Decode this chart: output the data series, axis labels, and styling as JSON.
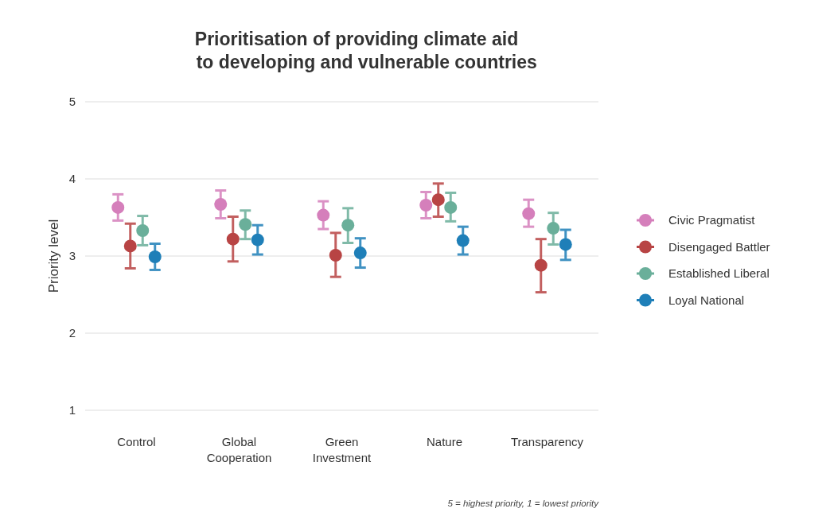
{
  "chart_data": {
    "type": "scatter",
    "title": "Prioritisation of providing climate aid\n    to developing and vulnerable countries",
    "ylabel": "Priority level",
    "annotations": [
      "5 = highest priority, 1 = lowest priority"
    ],
    "categories": [
      "Control",
      "Global\nCooperation",
      "Green\nInvestment",
      "Nature",
      "Transparency"
    ],
    "ylim": [
      1,
      5
    ],
    "yticks": [
      1,
      2,
      3,
      4,
      5
    ],
    "grid": "y",
    "legend": "right",
    "marker": "circle",
    "series": [
      {
        "name": "Civic Pragmatist",
        "color": "#d57fbb",
        "values": [
          3.63,
          3.67,
          3.53,
          3.66,
          3.55
        ],
        "errors": [
          [
            3.46,
            3.8
          ],
          [
            3.49,
            3.85
          ],
          [
            3.35,
            3.71
          ],
          [
            3.49,
            3.83
          ],
          [
            3.38,
            3.73
          ]
        ]
      },
      {
        "name": "Disengaged Battler",
        "color": "#b84444",
        "values": [
          3.13,
          3.22,
          3.01,
          3.73,
          2.88
        ],
        "errors": [
          [
            2.84,
            3.42
          ],
          [
            2.93,
            3.51
          ],
          [
            2.73,
            3.3
          ],
          [
            3.51,
            3.94
          ],
          [
            2.53,
            3.22
          ]
        ]
      },
      {
        "name": "Established Liberal",
        "color": "#6aaf9a",
        "values": [
          3.33,
          3.41,
          3.4,
          3.63,
          3.36
        ],
        "errors": [
          [
            3.14,
            3.52
          ],
          [
            3.22,
            3.59
          ],
          [
            3.17,
            3.62
          ],
          [
            3.45,
            3.82
          ],
          [
            3.15,
            3.56
          ]
        ]
      },
      {
        "name": "Loyal National",
        "color": "#1f7fb8",
        "values": [
          2.99,
          3.21,
          3.04,
          3.2,
          3.15
        ],
        "errors": [
          [
            2.82,
            3.16
          ],
          [
            3.02,
            3.4
          ],
          [
            2.85,
            3.23
          ],
          [
            3.02,
            3.38
          ],
          [
            2.95,
            3.34
          ]
        ]
      }
    ]
  }
}
